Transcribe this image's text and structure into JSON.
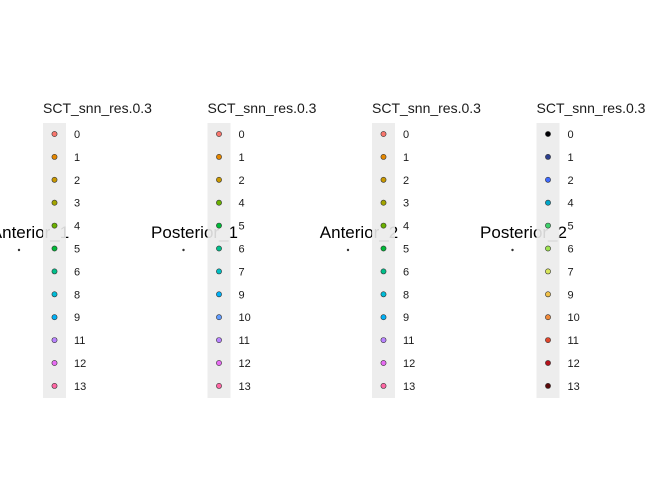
{
  "chart_data": [
    {
      "type": "scatter",
      "title": "Anterior_1",
      "legend_title": "SCT_snn_res.0.3",
      "legend_position": "right",
      "grid": false,
      "categories": [
        "0",
        "1",
        "2",
        "3",
        "4",
        "5",
        "6",
        "8",
        "9",
        "11",
        "12",
        "13"
      ],
      "colors": [
        "#F8766D",
        "#E58700",
        "#C99800",
        "#A3A500",
        "#6BB100",
        "#00BA38",
        "#00C08B",
        "#00BCD8",
        "#00B0F6",
        "#B983FF",
        "#E76BF3",
        "#FF67A4"
      ]
    },
    {
      "type": "scatter",
      "title": "Posterior_1",
      "legend_title": "SCT_snn_res.0.3",
      "legend_position": "right",
      "grid": false,
      "categories": [
        "0",
        "1",
        "2",
        "4",
        "5",
        "6",
        "7",
        "9",
        "10",
        "11",
        "12",
        "13"
      ],
      "colors": [
        "#F8766D",
        "#E58700",
        "#C99800",
        "#6BB100",
        "#00BA38",
        "#00C08B",
        "#00BFC4",
        "#00B0F6",
        "#619CFF",
        "#B983FF",
        "#E76BF3",
        "#FF67A4"
      ]
    },
    {
      "type": "scatter",
      "title": "Anterior_2",
      "legend_title": "SCT_snn_res.0.3",
      "legend_position": "right",
      "grid": false,
      "categories": [
        "0",
        "1",
        "2",
        "3",
        "4",
        "5",
        "6",
        "8",
        "9",
        "11",
        "12",
        "13"
      ],
      "colors": [
        "#F8766D",
        "#E58700",
        "#C99800",
        "#A3A500",
        "#6BB100",
        "#00BA38",
        "#00C08B",
        "#00BCD8",
        "#00B0F6",
        "#B983FF",
        "#E76BF3",
        "#FF67A4"
      ]
    },
    {
      "type": "scatter",
      "title": "Posterior_2",
      "legend_title": "SCT_snn_res.0.3",
      "legend_position": "right",
      "grid": false,
      "categories": [
        "0",
        "1",
        "2",
        "4",
        "5",
        "6",
        "7",
        "9",
        "10",
        "11",
        "12",
        "13"
      ],
      "colors": [
        "#000004",
        "#2B3F8E",
        "#3F6BFF",
        "#00A6C9",
        "#3FD16B",
        "#9EE34F",
        "#D8E65A",
        "#F2C24A",
        "#F08A3A",
        "#E0462C",
        "#B5121B",
        "#5A0A0A"
      ]
    }
  ]
}
